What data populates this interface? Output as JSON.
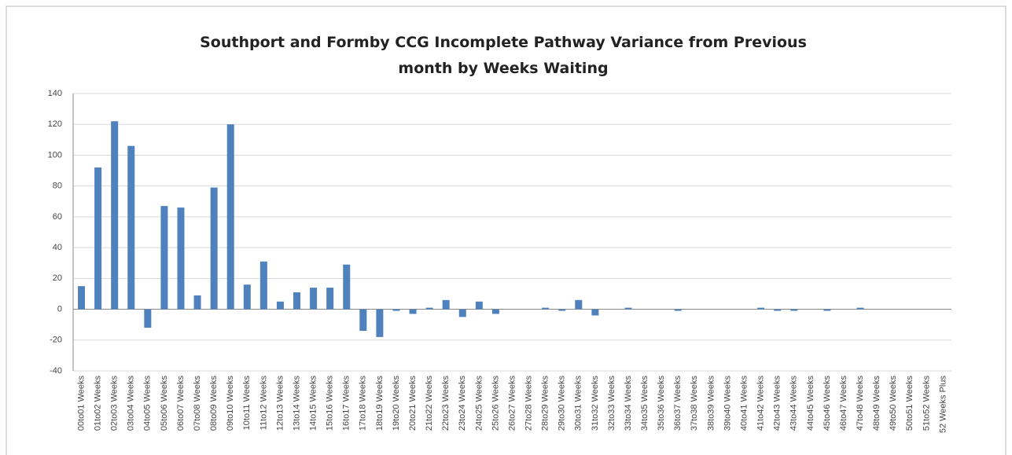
{
  "chart_data": {
    "type": "bar",
    "title": "Southport and Formby CCG Incomplete Pathway Variance from Previous month by Weeks Waiting",
    "categories": [
      "00to01 Weeks",
      "01to02 Weeks",
      "02to03 Weeks",
      "03to04 Weeks",
      "04to05 Weeks",
      "05to06 Weeks",
      "06to07 Weeks",
      "07to08 Weeks",
      "08to09 Weeks",
      "09to10 Weeks",
      "10to11 Weeks",
      "11to12 Weeks",
      "12to13 Weeks",
      "13to14 Weeks",
      "14to15 Weeks",
      "15to16 Weeks",
      "16to17 Weeks",
      "17to18 Weeks",
      "18to19 Weeks",
      "19to20 Weeks",
      "20to21 Weeks",
      "21to22 Weeks",
      "22to23 Weeks",
      "23to24 Weeks",
      "24to25 Weeks",
      "25to26 Weeks",
      "26to27 Weeks",
      "27to28 Weeks",
      "28to29 Weeks",
      "29to30 Weeks",
      "30to31 Weeks",
      "31to32 Weeks",
      "32to33 Weeks",
      "33to34 Weeks",
      "34to35 Weeks",
      "35to36 Weeks",
      "36to37 Weeks",
      "37to38 Weeks",
      "38to39 Weeks",
      "39to40 Weeks",
      "40to41 Weeks",
      "41to42 Weeks",
      "42to43 Weeks",
      "43to44 Weeks",
      "44to45 Weeks",
      "45to46 Weeks",
      "46to47 Weeks",
      "47to48 Weeks",
      "48to49 Weeks",
      "49to50 Weeks",
      "50to51 Weeks",
      "51to52 Weeks",
      "52 Weeks Plus"
    ],
    "values": [
      15,
      92,
      122,
      106,
      -12,
      67,
      66,
      9,
      79,
      120,
      16,
      31,
      5,
      11,
      14,
      14,
      29,
      -14,
      -18,
      -1,
      -3,
      1,
      6,
      -5,
      5,
      -3,
      0,
      0,
      1,
      -1,
      6,
      -4,
      0,
      1,
      0,
      0,
      -1,
      0,
      0,
      0,
      0,
      1,
      -1,
      -1,
      0,
      -1,
      0,
      1,
      0,
      0,
      0,
      0,
      0
    ],
    "color": "#4f81bd",
    "ylim": [
      -40,
      140
    ],
    "yticks": [
      -40,
      -20,
      0,
      20,
      40,
      60,
      80,
      100,
      120,
      140
    ],
    "grid": true
  }
}
